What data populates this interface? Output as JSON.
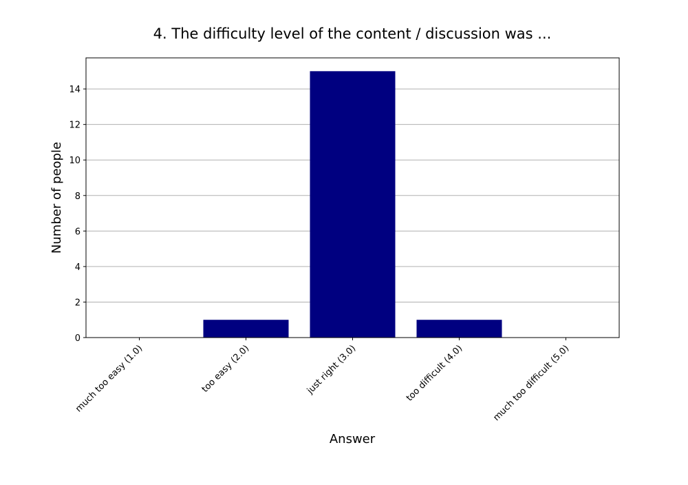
{
  "chart_data": {
    "type": "bar",
    "title": "4. The difficulty level of the content / discussion was ...",
    "xlabel": "Answer",
    "ylabel": "Number of people",
    "categories": [
      "much too easy (1.0)",
      "too easy (2.0)",
      "just right (3.0)",
      "too difficult (4.0)",
      "much too difficult (5.0)"
    ],
    "values": [
      0,
      1,
      15,
      1,
      0
    ],
    "ylim": [
      0,
      15.75
    ],
    "yticks": [
      0,
      2,
      4,
      6,
      8,
      10,
      12,
      14
    ],
    "grid": "horizontal",
    "legend": "none",
    "bar_color": "#000080",
    "grid_color": "#b0b0b0"
  }
}
